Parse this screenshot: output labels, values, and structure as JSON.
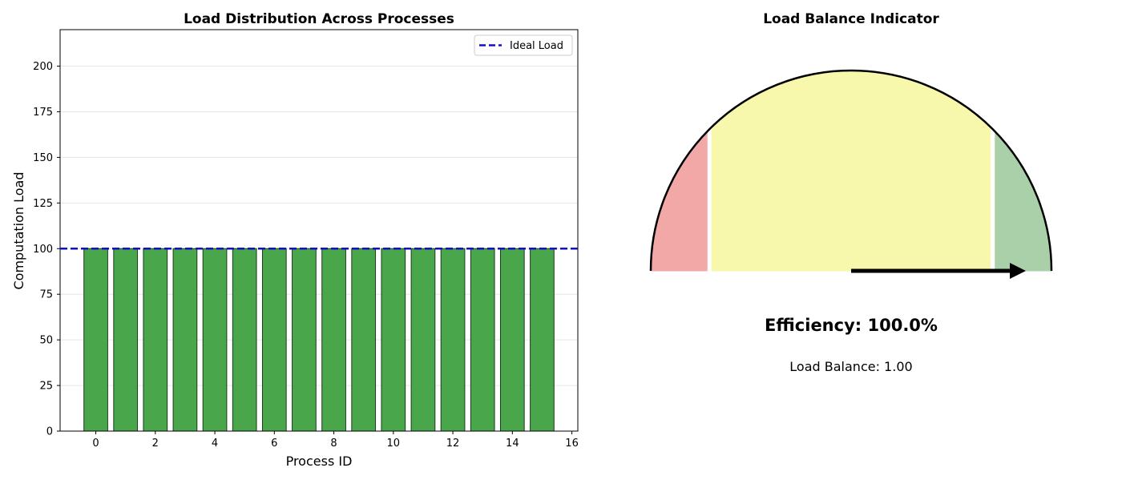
{
  "chart_data": [
    {
      "type": "bar",
      "title": "Load Distribution Across Processes",
      "xlabel": "Process ID",
      "ylabel": "Computation Load",
      "categories": [
        0,
        1,
        2,
        3,
        4,
        5,
        6,
        7,
        8,
        9,
        10,
        11,
        12,
        13,
        14,
        15
      ],
      "values": [
        100,
        100,
        100,
        100,
        100,
        100,
        100,
        100,
        100,
        100,
        100,
        100,
        100,
        100,
        100,
        100
      ],
      "xlim": [
        -1.2,
        16.2
      ],
      "ylim": [
        0,
        220
      ],
      "xticks": [
        0,
        2,
        4,
        6,
        8,
        10,
        12,
        14,
        16
      ],
      "yticks": [
        0,
        25,
        50,
        75,
        100,
        125,
        150,
        175,
        200
      ],
      "grid": "y",
      "bar_color": "#4aa64a",
      "ideal_line": {
        "label": "Ideal Load",
        "value": 100,
        "color": "#1010cc"
      },
      "legend": {
        "position": "top-right"
      }
    },
    {
      "type": "gauge",
      "title": "Load Balance Indicator",
      "range": [
        0,
        1
      ],
      "zones": [
        {
          "from": 0.0,
          "to": 0.25,
          "color": "#f3a8a8"
        },
        {
          "from": 0.25,
          "to": 0.75,
          "color": "#f7f8ac"
        },
        {
          "from": 0.75,
          "to": 1.0,
          "color": "#a9d0a9"
        }
      ],
      "value": 1.0,
      "efficiency_text": "Efficiency: 100.0%",
      "balance_text": "Load Balance: 1.00"
    }
  ]
}
